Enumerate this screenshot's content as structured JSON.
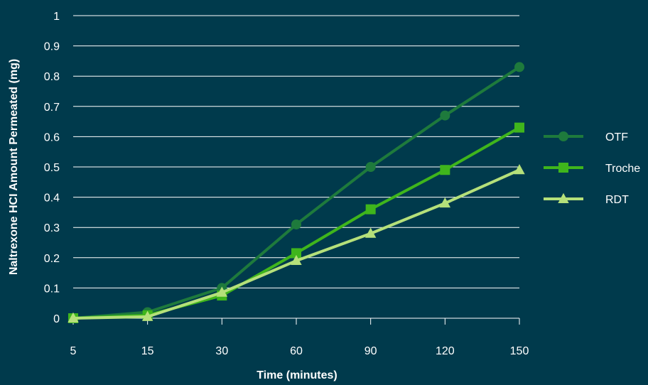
{
  "chart_data": {
    "type": "line",
    "categories": [
      "5",
      "15",
      "30",
      "60",
      "90",
      "120",
      "150"
    ],
    "xlabel": "Time (minutes)",
    "ylabel": "Naltrexone HCI Amount Permeated (mg)",
    "ylim": [
      0,
      1
    ],
    "yticks": [
      "0",
      "0.1",
      "0.2",
      "0.3",
      "0.4",
      "0.5",
      "0.6",
      "0.7",
      "0.8",
      "0.9",
      "1"
    ],
    "grid": "horizontal",
    "legend_position": "right",
    "series": [
      {
        "name": "OTF",
        "marker": "circle",
        "color": "#1e7a3c",
        "values": [
          0.0,
          0.02,
          0.1,
          0.31,
          0.5,
          0.67,
          0.83
        ]
      },
      {
        "name": "Troche",
        "marker": "square",
        "color": "#3fb51c",
        "values": [
          0.0,
          0.01,
          0.075,
          0.215,
          0.36,
          0.49,
          0.63
        ]
      },
      {
        "name": "RDT",
        "marker": "triangle",
        "color": "#b5e07a",
        "values": [
          0.0,
          0.005,
          0.085,
          0.19,
          0.28,
          0.38,
          0.49
        ]
      }
    ]
  }
}
